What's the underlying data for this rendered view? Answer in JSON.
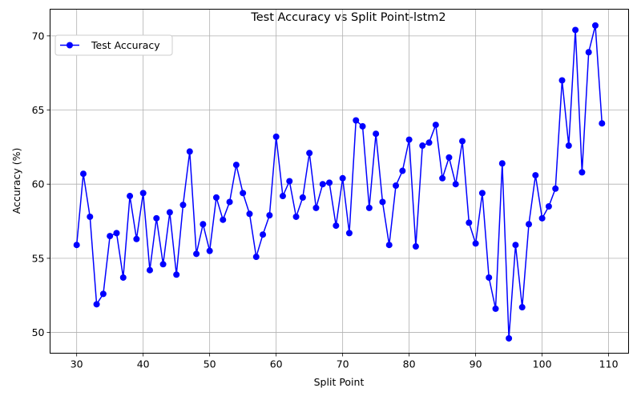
{
  "chart_data": {
    "type": "line",
    "title": "Test Accuracy vs Split Point-lstm2",
    "xlabel": "Split Point",
    "ylabel": "Accuracy (%)",
    "xlim": [
      26,
      113
    ],
    "ylim": [
      48.6,
      71.8
    ],
    "xticks": [
      30,
      40,
      50,
      60,
      70,
      80,
      90,
      100,
      110
    ],
    "yticks": [
      50,
      55,
      60,
      65,
      70
    ],
    "grid": true,
    "legend_position": "top-left",
    "series": [
      {
        "name": "Test Accuracy",
        "color": "#0000ff",
        "marker": "circle",
        "x": [
          30,
          31,
          32,
          33,
          34,
          35,
          36,
          37,
          38,
          39,
          40,
          41,
          42,
          43,
          44,
          45,
          46,
          47,
          48,
          49,
          50,
          51,
          52,
          53,
          54,
          55,
          56,
          57,
          58,
          59,
          60,
          61,
          62,
          63,
          64,
          65,
          66,
          67,
          68,
          69,
          70,
          71,
          72,
          73,
          74,
          75,
          76,
          77,
          78,
          79,
          80,
          81,
          82,
          83,
          84,
          85,
          86,
          87,
          88,
          89,
          90,
          91,
          92,
          93,
          94,
          95,
          96,
          97,
          98,
          99,
          100,
          101,
          102,
          103,
          104,
          105,
          106,
          107,
          108,
          109
        ],
        "y": [
          55.9,
          60.7,
          57.8,
          51.9,
          52.6,
          56.5,
          56.7,
          53.7,
          59.2,
          56.3,
          59.4,
          54.2,
          57.7,
          54.6,
          58.1,
          53.9,
          58.6,
          62.2,
          55.3,
          57.3,
          55.5,
          59.1,
          57.6,
          58.8,
          61.3,
          59.4,
          58.0,
          55.1,
          56.6,
          57.9,
          63.2,
          59.2,
          60.2,
          57.8,
          59.1,
          62.1,
          58.4,
          60.0,
          60.1,
          57.2,
          60.4,
          56.7,
          64.3,
          63.9,
          58.4,
          63.4,
          58.8,
          55.9,
          59.9,
          60.9,
          63.0,
          55.8,
          62.6,
          62.8,
          64.0,
          60.4,
          61.8,
          60.0,
          62.9,
          57.4,
          56.0,
          59.4,
          53.7,
          51.6,
          61.4,
          49.6,
          55.9,
          51.7,
          57.3,
          60.6,
          57.7,
          58.5,
          59.7,
          67.0,
          62.6,
          70.4,
          60.8,
          68.9,
          70.7,
          64.1
        ]
      }
    ]
  }
}
